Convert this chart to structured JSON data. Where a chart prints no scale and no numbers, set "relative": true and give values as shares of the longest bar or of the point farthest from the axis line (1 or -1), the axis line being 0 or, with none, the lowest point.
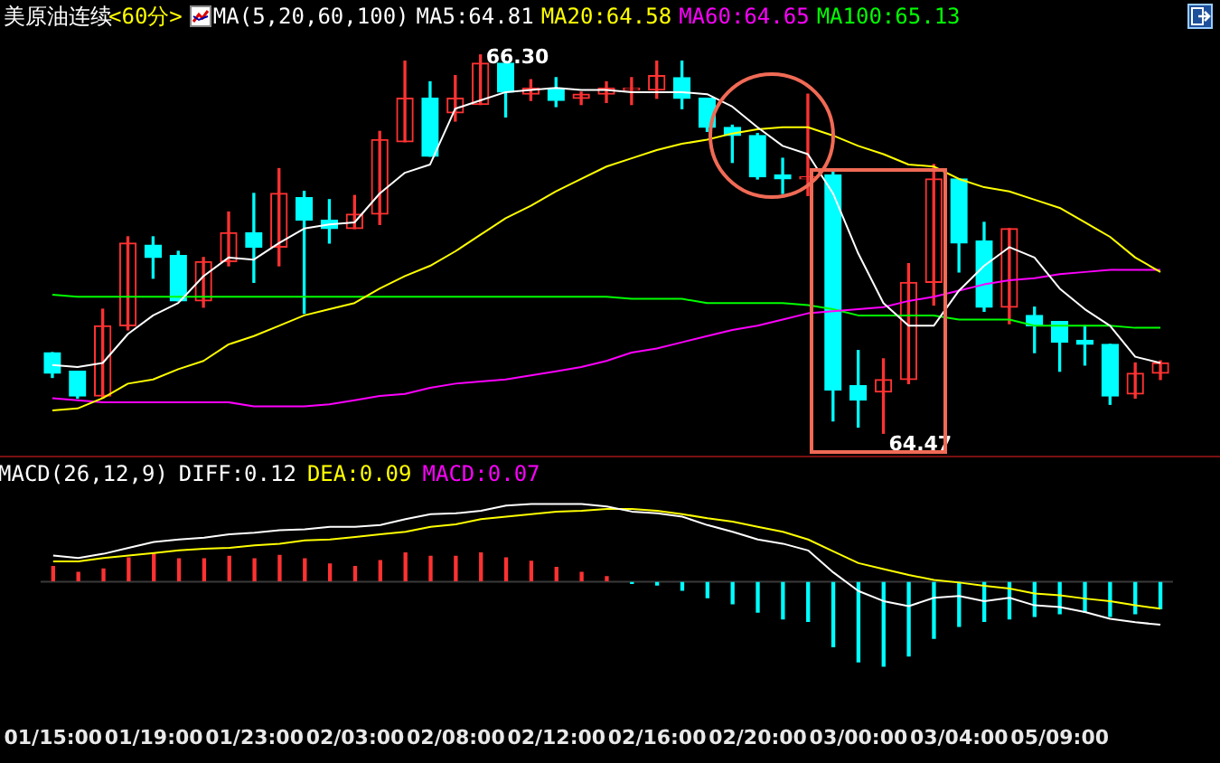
{
  "chart_data": [
    {
      "type": "candlestick",
      "title": "美原油连续",
      "subtitle": "<60分>",
      "legend_title": "MA(5,20,60,100)",
      "legend": "top",
      "tick_labels": false,
      "categories": [
        null,
        null,
        null,
        null,
        null,
        null,
        null,
        null,
        null,
        null,
        null,
        null,
        null,
        null,
        null,
        null,
        null,
        null,
        null,
        null,
        null,
        null,
        null,
        null,
        null,
        null,
        null,
        null,
        null,
        null,
        null,
        null,
        null,
        null,
        null,
        null,
        null,
        null,
        null,
        null,
        null,
        null,
        null,
        null,
        null
      ],
      "ohlc": [
        [
          64.86,
          64.86,
          64.74,
          64.76
        ],
        [
          64.77,
          64.77,
          64.64,
          64.65
        ],
        [
          64.65,
          65.07,
          64.64,
          64.99
        ],
        [
          64.99,
          65.42,
          64.97,
          65.39
        ],
        [
          65.38,
          65.42,
          65.22,
          65.32
        ],
        [
          65.33,
          65.35,
          65.11,
          65.11
        ],
        [
          65.11,
          65.32,
          65.08,
          65.3
        ],
        [
          65.3,
          65.54,
          65.28,
          65.44
        ],
        [
          65.44,
          65.63,
          65.2,
          65.37
        ],
        [
          65.37,
          65.75,
          65.28,
          65.63
        ],
        [
          65.61,
          65.64,
          65.05,
          65.5
        ],
        [
          65.5,
          65.6,
          65.39,
          65.46
        ],
        [
          65.46,
          65.62,
          65.46,
          65.53
        ],
        [
          65.53,
          65.93,
          65.48,
          65.89
        ],
        [
          65.88,
          66.27,
          65.88,
          66.09
        ],
        [
          66.09,
          66.17,
          65.81,
          65.81
        ],
        [
          66.02,
          66.2,
          65.98,
          66.09
        ],
        [
          66.06,
          66.3,
          66.06,
          66.26
        ],
        [
          66.26,
          66.27,
          66.0,
          66.12
        ],
        [
          66.11,
          66.18,
          66.08,
          66.14
        ],
        [
          66.14,
          66.19,
          66.05,
          66.08
        ],
        [
          66.09,
          66.12,
          66.06,
          66.11
        ],
        [
          66.11,
          66.17,
          66.07,
          66.14
        ],
        [
          66.13,
          66.19,
          66.06,
          66.14
        ],
        [
          66.13,
          66.27,
          66.09,
          66.2
        ],
        [
          66.19,
          66.27,
          66.04,
          66.09
        ],
        [
          66.09,
          66.09,
          65.93,
          65.95
        ],
        [
          65.95,
          65.96,
          65.78,
          65.91
        ],
        [
          65.91,
          65.92,
          65.7,
          65.71
        ],
        [
          65.72,
          65.8,
          65.63,
          65.7
        ],
        [
          65.7,
          66.11,
          65.62,
          65.71
        ],
        [
          65.72,
          65.74,
          64.53,
          64.68
        ],
        [
          64.7,
          64.87,
          64.5,
          64.63
        ],
        [
          64.67,
          64.83,
          64.47,
          64.73
        ],
        [
          64.73,
          65.29,
          64.71,
          65.2
        ],
        [
          65.2,
          65.77,
          65.09,
          65.7
        ],
        [
          65.7,
          65.7,
          65.25,
          65.39
        ],
        [
          65.4,
          65.49,
          65.06,
          65.08
        ],
        [
          65.08,
          65.46,
          65.0,
          65.46
        ],
        [
          65.04,
          65.08,
          64.86,
          64.99
        ],
        [
          65.01,
          65.01,
          64.77,
          64.91
        ],
        [
          64.92,
          64.99,
          64.8,
          64.9
        ],
        [
          64.9,
          64.9,
          64.61,
          64.65
        ],
        [
          64.66,
          64.81,
          64.64,
          64.76
        ],
        [
          64.76,
          64.82,
          64.73,
          64.81
        ]
      ],
      "colors": [
        "#00ffff",
        "#00ffff",
        "#ff3232",
        "#ff3232",
        "#00ffff",
        "#00ffff",
        "#ff3232",
        "#ff3232",
        "#00ffff",
        "#ff3232",
        "#00ffff",
        "#00ffff",
        "#ff3232",
        "#ff3232",
        "#ff3232",
        "#00ffff",
        "#ff3232",
        "#ff3232",
        "#00ffff",
        "#ff3232",
        "#00ffff",
        "#ff3232",
        "#ff3232",
        "#ff3232",
        "#ff3232",
        "#00ffff",
        "#00ffff",
        "#00ffff",
        "#00ffff",
        "#00ffff",
        "#ff3232",
        "#00ffff",
        "#00ffff",
        "#ff3232",
        "#ff3232",
        "#ff3232",
        "#00ffff",
        "#00ffff",
        "#ff3232",
        "#00ffff",
        "#00ffff",
        "#00ffff",
        "#00ffff",
        "#ff3232",
        "#ff3232"
      ],
      "series": [
        {
          "name": "MA5:64.81",
          "type": "line",
          "color": "#ffffff",
          "values": [
            64.8,
            64.79,
            64.81,
            64.95,
            65.04,
            65.1,
            65.23,
            65.32,
            65.31,
            65.39,
            65.46,
            65.48,
            65.49,
            65.63,
            65.73,
            65.77,
            66.04,
            66.08,
            66.12,
            66.13,
            66.14,
            66.13,
            66.13,
            66.12,
            66.12,
            66.12,
            66.11,
            66.05,
            65.95,
            65.86,
            65.82,
            65.63,
            65.34,
            65.1,
            64.99,
            64.99,
            65.16,
            65.28,
            65.37,
            65.32,
            65.17,
            65.07,
            64.99,
            64.84,
            64.81
          ]
        },
        {
          "name": "MA20:64.58",
          "type": "line",
          "color": "#ffff00",
          "values": [
            64.58,
            64.59,
            64.64,
            64.71,
            64.73,
            64.78,
            64.82,
            64.9,
            64.94,
            64.99,
            65.04,
            65.07,
            65.1,
            65.17,
            65.23,
            65.28,
            65.35,
            65.43,
            65.51,
            65.57,
            65.64,
            65.7,
            65.76,
            65.8,
            65.84,
            65.87,
            65.89,
            65.92,
            65.94,
            65.95,
            65.95,
            65.91,
            65.86,
            65.82,
            65.77,
            65.76,
            65.7,
            65.66,
            65.64,
            65.6,
            65.56,
            65.49,
            65.42,
            65.32,
            65.25
          ]
        },
        {
          "name": "MA60:64.65",
          "type": "line",
          "color": "#ff00ff",
          "values": [
            64.64,
            64.63,
            64.62,
            64.62,
            64.62,
            64.62,
            64.62,
            64.62,
            64.6,
            64.6,
            64.6,
            64.61,
            64.63,
            64.65,
            64.66,
            64.69,
            64.71,
            64.72,
            64.73,
            64.75,
            64.77,
            64.79,
            64.82,
            64.86,
            64.88,
            64.91,
            64.94,
            64.97,
            64.99,
            65.02,
            65.05,
            65.06,
            65.07,
            65.08,
            65.11,
            65.13,
            65.16,
            65.19,
            65.21,
            65.22,
            65.24,
            65.25,
            65.26,
            65.26,
            65.26
          ]
        },
        {
          "name": "MA100:65.13",
          "type": "line",
          "color": "#00ff00",
          "values": [
            65.14,
            65.13,
            65.13,
            65.13,
            65.13,
            65.13,
            65.13,
            65.13,
            65.13,
            65.13,
            65.13,
            65.13,
            65.13,
            65.13,
            65.13,
            65.13,
            65.13,
            65.13,
            65.13,
            65.13,
            65.13,
            65.13,
            65.13,
            65.12,
            65.12,
            65.12,
            65.1,
            65.1,
            65.1,
            65.1,
            65.09,
            65.07,
            65.04,
            65.04,
            65.04,
            65.04,
            65.02,
            65.02,
            65.02,
            64.99,
            64.99,
            64.99,
            64.99,
            64.98,
            64.98
          ]
        }
      ],
      "annotations": [
        "66.30",
        "64.47"
      ]
    },
    {
      "type": "bar",
      "legend_title": "MACD(26,12,9)",
      "legend": "top left",
      "relative": true,
      "tick_labels": "x",
      "annotations": [
        "MACD:0.07"
      ],
      "ref_lines": [
        {
          "axis": "y",
          "value": 0,
          "color": "#3a3a3a"
        }
      ],
      "categories": [
        "01/15:00",
        null,
        null,
        null,
        "01/19:00",
        null,
        null,
        null,
        "01/23:00",
        null,
        null,
        null,
        "02/03:00",
        null,
        null,
        null,
        "02/08:00",
        null,
        null,
        null,
        "02/12:00",
        null,
        null,
        null,
        "02/16:00",
        null,
        null,
        null,
        "02/20:00",
        null,
        null,
        null,
        "03/00:00",
        null,
        null,
        null,
        "03/04:00",
        null,
        null,
        null,
        "05/09:00",
        null,
        null,
        null,
        null
      ],
      "series": [
        {
          "name": "DIFF:0.12",
          "type": "line",
          "color": "#ffffff",
          "values": [
            0.31,
            0.28,
            0.33,
            0.4,
            0.47,
            0.5,
            0.52,
            0.56,
            0.58,
            0.61,
            0.62,
            0.65,
            0.65,
            0.67,
            0.74,
            0.8,
            0.81,
            0.84,
            0.9,
            0.92,
            0.92,
            0.92,
            0.89,
            0.83,
            0.81,
            0.77,
            0.67,
            0.59,
            0.5,
            0.45,
            0.37,
            0.11,
            -0.11,
            -0.23,
            -0.29,
            -0.19,
            -0.17,
            -0.23,
            -0.19,
            -0.28,
            -0.3,
            -0.36,
            -0.44,
            -0.48,
            -0.51
          ]
        },
        {
          "name": "DEA:0.09",
          "type": "line",
          "color": "#ffff00",
          "values": [
            0.24,
            0.24,
            0.28,
            0.31,
            0.34,
            0.37,
            0.39,
            0.4,
            0.43,
            0.45,
            0.49,
            0.5,
            0.53,
            0.56,
            0.59,
            0.65,
            0.68,
            0.74,
            0.77,
            0.8,
            0.83,
            0.84,
            0.86,
            0.86,
            0.84,
            0.8,
            0.75,
            0.71,
            0.65,
            0.59,
            0.5,
            0.36,
            0.22,
            0.15,
            0.08,
            0.02,
            -0.01,
            -0.05,
            -0.08,
            -0.14,
            -0.16,
            -0.2,
            -0.23,
            -0.28,
            -0.32
          ]
        },
        {
          "type": "bar",
          "values": [
            0.18,
            0.11,
            0.15,
            0.28,
            0.33,
            0.27,
            0.27,
            0.3,
            0.27,
            0.31,
            0.27,
            0.21,
            0.18,
            0.25,
            0.34,
            0.3,
            0.3,
            0.34,
            0.28,
            0.24,
            0.17,
            0.11,
            0.06,
            -0.02,
            -0.04,
            -0.1,
            -0.19,
            -0.26,
            -0.36,
            -0.44,
            -0.47,
            -0.77,
            -0.95,
            -1,
            -0.88,
            -0.67,
            -0.53,
            -0.47,
            -0.44,
            -0.41,
            -0.38,
            -0.36,
            -0.41,
            -0.38,
            -0.32
          ],
          "colors": [
            "#ff3232",
            "#ff3232",
            "#ff3232",
            "#ff3232",
            "#ff3232",
            "#ff3232",
            "#ff3232",
            "#ff3232",
            "#ff3232",
            "#ff3232",
            "#ff3232",
            "#ff3232",
            "#ff3232",
            "#ff3232",
            "#ff3232",
            "#ff3232",
            "#ff3232",
            "#ff3232",
            "#ff3232",
            "#ff3232",
            "#ff3232",
            "#ff3232",
            "#ff3232",
            "#00ffff",
            "#00ffff",
            "#00ffff",
            "#00ffff",
            "#00ffff",
            "#00ffff",
            "#00ffff",
            "#00ffff",
            "#00ffff",
            "#00ffff",
            "#00ffff",
            "#00ffff",
            "#00ffff",
            "#00ffff",
            "#00ffff",
            "#00ffff",
            "#00ffff",
            "#00ffff",
            "#00ffff",
            "#00ffff",
            "#00ffff",
            "#00ffff"
          ]
        }
      ]
    }
  ]
}
